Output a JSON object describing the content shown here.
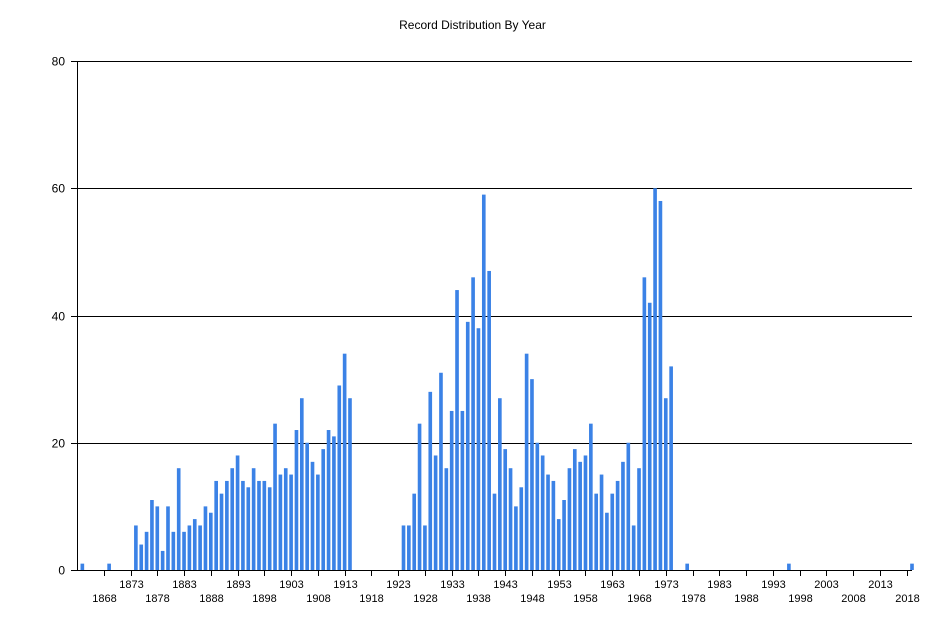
{
  "chart_data": {
    "type": "bar",
    "title": "Record Distribution By Year",
    "xlabel": "",
    "ylabel": "",
    "ylim": [
      0,
      80
    ],
    "yticks": [
      0,
      20,
      40,
      60,
      80
    ],
    "xlim": [
      1863,
      2019
    ],
    "xticks_upper": [
      1873,
      1883,
      1893,
      1903,
      1913,
      1923,
      1933,
      1943,
      1953,
      1963,
      1973,
      1983,
      1993,
      2003,
      2013
    ],
    "xticks_lower": [
      1868,
      1878,
      1888,
      1898,
      1908,
      1918,
      1928,
      1938,
      1948,
      1958,
      1968,
      1978,
      1988,
      1998,
      2008,
      2018
    ],
    "grid": true,
    "bar_color": "#3b82e6",
    "years": [
      1864,
      1869,
      1874,
      1875,
      1876,
      1877,
      1878,
      1879,
      1880,
      1881,
      1882,
      1883,
      1884,
      1885,
      1886,
      1887,
      1888,
      1889,
      1890,
      1891,
      1892,
      1893,
      1894,
      1895,
      1896,
      1897,
      1898,
      1899,
      1900,
      1901,
      1902,
      1903,
      1904,
      1905,
      1906,
      1907,
      1908,
      1909,
      1910,
      1911,
      1912,
      1913,
      1914,
      1924,
      1925,
      1926,
      1927,
      1928,
      1929,
      1930,
      1931,
      1932,
      1933,
      1934,
      1935,
      1936,
      1937,
      1938,
      1939,
      1940,
      1941,
      1942,
      1943,
      1944,
      1945,
      1946,
      1947,
      1948,
      1949,
      1950,
      1951,
      1952,
      1953,
      1954,
      1955,
      1956,
      1957,
      1958,
      1959,
      1960,
      1961,
      1962,
      1963,
      1964,
      1965,
      1966,
      1967,
      1968,
      1969,
      1970,
      1971,
      1972,
      1973,
      1974,
      1977,
      1996,
      2019
    ],
    "values": [
      1,
      1,
      7,
      4,
      6,
      11,
      10,
      3,
      10,
      6,
      16,
      6,
      7,
      8,
      7,
      10,
      9,
      14,
      12,
      14,
      16,
      18,
      14,
      13,
      16,
      14,
      14,
      13,
      23,
      15,
      16,
      15,
      22,
      27,
      20,
      17,
      15,
      19,
      22,
      21,
      29,
      34,
      27,
      7,
      7,
      12,
      23,
      7,
      28,
      18,
      31,
      16,
      25,
      44,
      25,
      39,
      46,
      38,
      59,
      47,
      12,
      27,
      19,
      16,
      10,
      13,
      34,
      30,
      20,
      18,
      15,
      14,
      8,
      11,
      16,
      19,
      17,
      18,
      23,
      12,
      15,
      9,
      12,
      14,
      17,
      20,
      7,
      16,
      46,
      42,
      60,
      58,
      27,
      32,
      1,
      1,
      1
    ]
  }
}
